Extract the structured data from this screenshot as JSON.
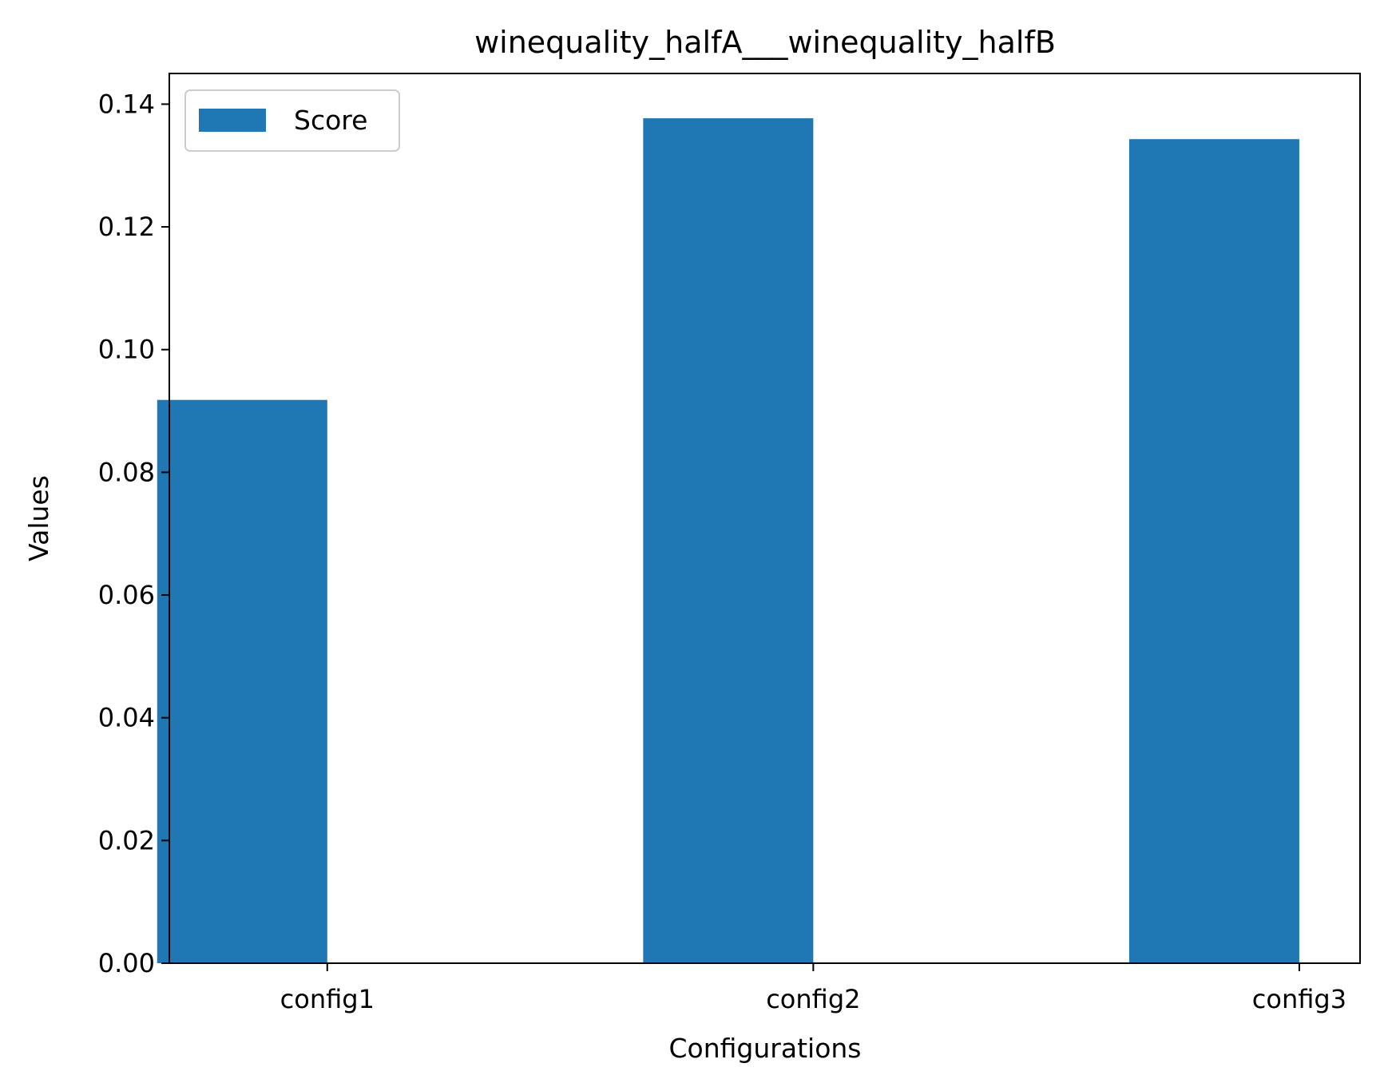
{
  "chart_data": {
    "type": "bar",
    "title": "winequality_halfA___winequality_halfB",
    "xlabel": "Configurations",
    "ylabel": "Values",
    "categories": [
      "config1",
      "config2",
      "config3"
    ],
    "series": [
      {
        "name": "Score",
        "values": [
          0.0918,
          0.1377,
          0.1343
        ],
        "color": "#1f77b4"
      }
    ],
    "ylim": [
      0,
      0.145
    ],
    "yticks": [
      0.0,
      0.02,
      0.04,
      0.06,
      0.08,
      0.1,
      0.12,
      0.14
    ],
    "ytick_labels": [
      "0.00",
      "0.02",
      "0.04",
      "0.06",
      "0.08",
      "0.10",
      "0.12",
      "0.14"
    ],
    "grid": false,
    "legend_position": "top-left"
  }
}
